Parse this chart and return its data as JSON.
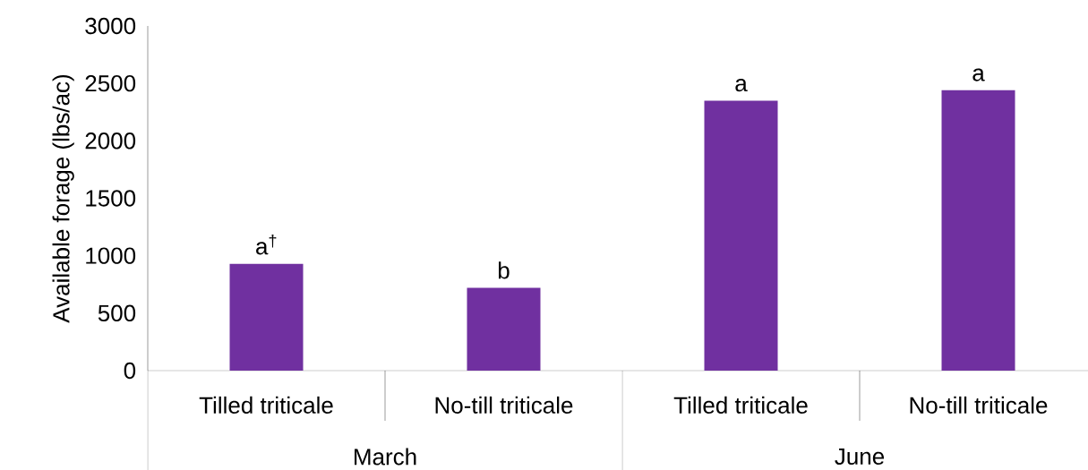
{
  "chart_data": {
    "type": "bar",
    "ylabel": "Available forage (lbs/ac)",
    "categories": [
      "Tilled triticale",
      "No-till triticale",
      "Tilled triticale",
      "No-till triticale"
    ],
    "values": [
      930,
      720,
      2350,
      2440
    ],
    "color": "#7030a0",
    "ylim": [
      0,
      3000
    ],
    "yticks": [
      0,
      500,
      1000,
      1500,
      2000,
      2500,
      3000
    ],
    "annotations": [
      "a$^{†}$",
      "b",
      "a",
      "a",
      "March",
      "June"
    ]
  }
}
